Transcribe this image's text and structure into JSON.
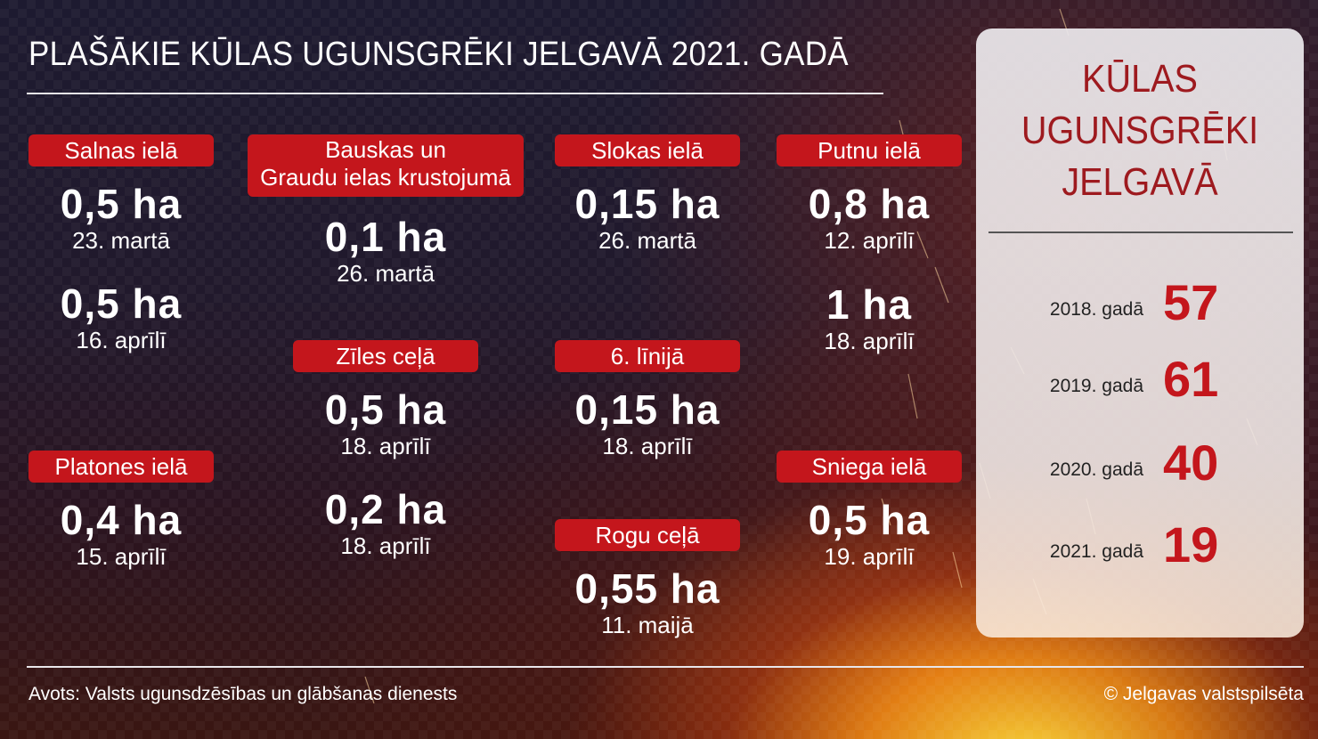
{
  "title": "PLAŠĀKIE KŪLAS UGUNSGRĒKI JELGAVĀ 2021. GADĀ",
  "columns": [
    {
      "groups": [
        {
          "label": "Salnas ielā",
          "entries": [
            {
              "area": "0,5 ha",
              "date": "23. martā"
            },
            {
              "area": "0,5 ha",
              "date": "16. aprīlī"
            }
          ]
        },
        {
          "label": "Platones ielā",
          "entries": [
            {
              "area": "0,4 ha",
              "date": "15. aprīlī"
            }
          ]
        }
      ]
    },
    {
      "groups": [
        {
          "label": "Bauskas un Graudu ielas krustojumā",
          "label_lines": [
            "Bauskas un",
            "Graudu ielas krustojumā"
          ],
          "entries": [
            {
              "area": "0,1 ha",
              "date": "26. martā"
            }
          ]
        },
        {
          "label": "Zīles ceļā",
          "entries": [
            {
              "area": "0,5 ha",
              "date": "18. aprīlī"
            },
            {
              "area": "0,2 ha",
              "date": "18. aprīlī"
            }
          ]
        }
      ]
    },
    {
      "groups": [
        {
          "label": "Slokas ielā",
          "entries": [
            {
              "area": "0,15 ha",
              "date": "26. martā"
            }
          ]
        },
        {
          "label": "6. līnijā",
          "entries": [
            {
              "area": "0,15 ha",
              "date": "18. aprīlī"
            }
          ]
        },
        {
          "label": "Rogu ceļā",
          "entries": [
            {
              "area": "0,55 ha",
              "date": "11. maijā"
            }
          ]
        }
      ]
    },
    {
      "groups": [
        {
          "label": "Putnu ielā",
          "entries": [
            {
              "area": "0,8 ha",
              "date": "12. aprīlī"
            },
            {
              "area": "1 ha",
              "date": "18. aprīlī"
            }
          ]
        },
        {
          "label": "Sniega ielā",
          "entries": [
            {
              "area": "0,5 ha",
              "date": "19. aprīlī"
            }
          ]
        }
      ]
    }
  ],
  "panel": {
    "title_lines": [
      "KŪLAS",
      "UGUNSGRĒKI",
      "JELGAVĀ"
    ],
    "years": [
      {
        "label": "2018. gadā",
        "value": "57"
      },
      {
        "label": "2019. gadā",
        "value": "61"
      },
      {
        "label": "2020. gadā",
        "value": "40"
      },
      {
        "label": "2021. gadā",
        "value": "19"
      }
    ]
  },
  "footer": {
    "source": "Avots: Valsts ugunsdzēsības un glābšanas dienests",
    "copyright": "© Jelgavas valstspilsēta"
  },
  "colors": {
    "accent": "#c4161c",
    "panel_title": "#9e1a1f"
  }
}
